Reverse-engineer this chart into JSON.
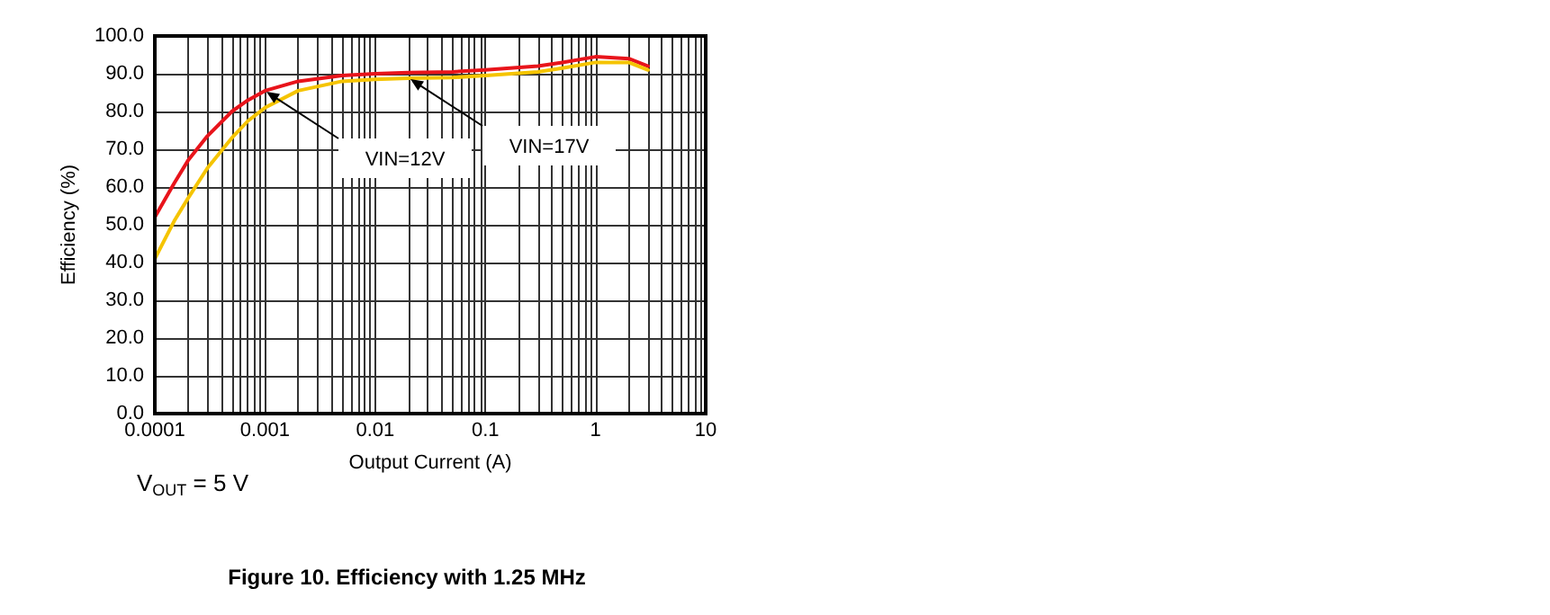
{
  "chart_data": {
    "type": "line",
    "title": "Figure 10. Efficiency with 1.25 MHz",
    "xlabel": "Output Current (A)",
    "ylabel": "Efficiency (%)",
    "annotations": [
      "V$_{OUT}$ = 5 V",
      "VIN=12V",
      "VIN=17V"
    ],
    "log": "x",
    "grid": true,
    "marker": "none",
    "xlim": [
      0.0001,
      10
    ],
    "ylim": [
      0,
      100
    ],
    "xticks": [
      0.0001,
      {
        "value": 0.0002,
        "label": null
      },
      {
        "value": 0.0003,
        "label": null
      },
      {
        "value": 0.0004,
        "label": null
      },
      {
        "value": 0.0005,
        "label": null
      },
      {
        "value": 0.0006,
        "label": null
      },
      {
        "value": 0.0007,
        "label": null
      },
      {
        "value": 0.0008,
        "label": null
      },
      {
        "value": 0.0009,
        "label": null
      },
      0.001,
      {
        "value": 0.002,
        "label": null
      },
      {
        "value": 0.003,
        "label": null
      },
      {
        "value": 0.004,
        "label": null
      },
      {
        "value": 0.005,
        "label": null
      },
      {
        "value": 0.006,
        "label": null
      },
      {
        "value": 0.007,
        "label": null
      },
      {
        "value": 0.008,
        "label": null
      },
      {
        "value": 0.009,
        "label": null
      },
      0.01,
      {
        "value": 0.02,
        "label": null
      },
      {
        "value": 0.03,
        "label": null
      },
      {
        "value": 0.04,
        "label": null
      },
      {
        "value": 0.05,
        "label": null
      },
      {
        "value": 0.06,
        "label": null
      },
      {
        "value": 0.07,
        "label": null
      },
      {
        "value": 0.08,
        "label": null
      },
      {
        "value": 0.09,
        "label": null
      },
      0.1,
      {
        "value": 0.2,
        "label": null
      },
      {
        "value": 0.3,
        "label": null
      },
      {
        "value": 0.4,
        "label": null
      },
      {
        "value": 0.5,
        "label": null
      },
      {
        "value": 0.6,
        "label": null
      },
      {
        "value": 0.7,
        "label": null
      },
      {
        "value": 0.8,
        "label": null
      },
      {
        "value": 0.9,
        "label": null
      },
      1,
      {
        "value": 2,
        "label": null
      },
      {
        "value": 3,
        "label": null
      },
      {
        "value": 4,
        "label": null
      },
      {
        "value": 5,
        "label": null
      },
      {
        "value": 6,
        "label": null
      },
      {
        "value": 7,
        "label": null
      },
      {
        "value": 8,
        "label": null
      },
      {
        "value": 9,
        "label": null
      },
      10
    ],
    "yticks": [
      {
        "value": 0,
        "label": "0.0"
      },
      {
        "value": 10,
        "label": "10.0"
      },
      {
        "value": 20,
        "label": "20.0"
      },
      {
        "value": 30,
        "label": "30.0"
      },
      {
        "value": 40,
        "label": "40.0"
      },
      {
        "value": 50,
        "label": "50.0"
      },
      {
        "value": 60,
        "label": "60.0"
      },
      {
        "value": 70,
        "label": "70.0"
      },
      {
        "value": 80,
        "label": "80.0"
      },
      {
        "value": 90,
        "label": "90.0"
      },
      {
        "value": 100,
        "label": "100.0"
      }
    ],
    "x": [
      0.0001,
      0.00015,
      0.0002,
      0.0003,
      0.0005,
      0.0007,
      0.001,
      0.002,
      0.005,
      0.01,
      0.02,
      0.05,
      0.1,
      0.3,
      0.5,
      1,
      2,
      3
    ],
    "series": [
      {
        "color": "#e8141b",
        "values": [
          52,
          61,
          67,
          73.5,
          80,
          83,
          85.5,
          88,
          89.5,
          90,
          90.3,
          90.5,
          91,
          92,
          93,
          94.5,
          94,
          92
        ]
      },
      {
        "color": "#f5c400",
        "values": [
          41,
          51,
          57,
          65,
          73,
          77.5,
          81,
          85.5,
          88,
          88.5,
          88.8,
          89,
          89.5,
          90.5,
          91.5,
          93,
          93,
          91
        ]
      }
    ]
  }
}
